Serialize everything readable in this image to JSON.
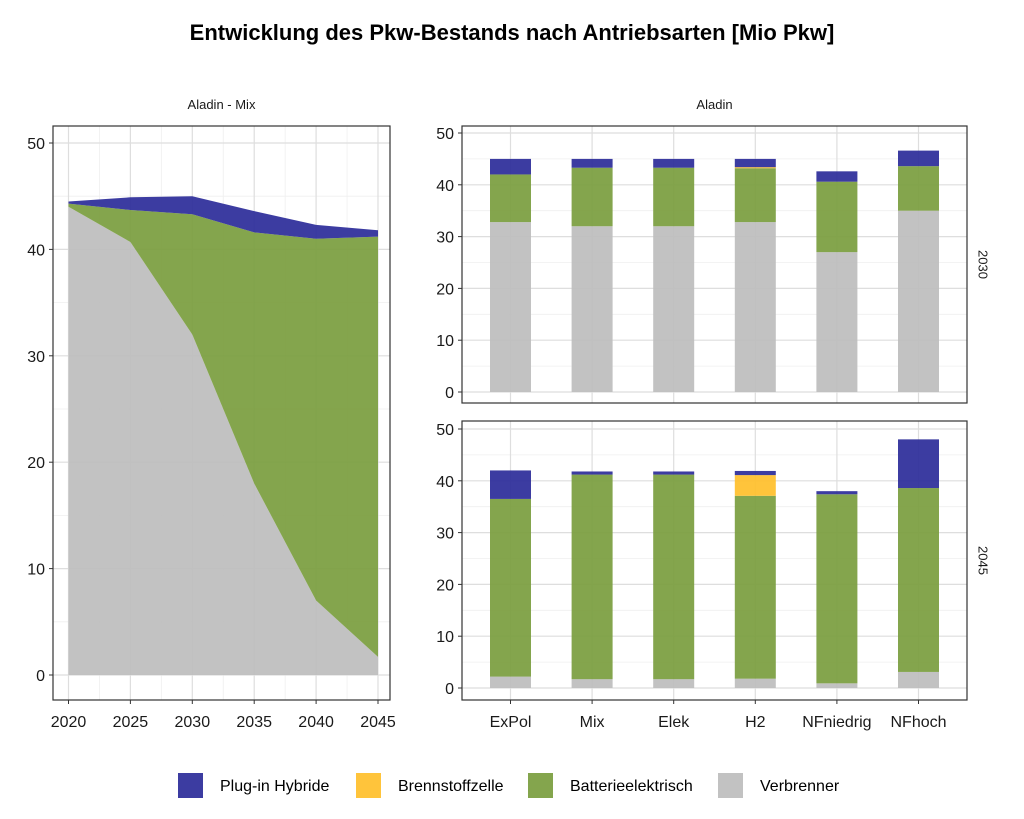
{
  "title": "Entwicklung des Pkw-Bestands nach Antriebsarten [Mio Pkw]",
  "colors": {
    "plugin": "#2b2b99",
    "fuelcell": "#ffbf2a",
    "bev": "#7a9d3e",
    "ice": "#bdbdbd"
  },
  "legend": [
    {
      "key": "plugin",
      "label": "Plug-in Hybride"
    },
    {
      "key": "fuelcell",
      "label": "Brennstoffzelle"
    },
    {
      "key": "bev",
      "label": "Batterieelektrisch"
    },
    {
      "key": "ice",
      "label": "Verbrenner"
    }
  ],
  "chart_data": [
    {
      "type": "area",
      "strip": "Aladin - Mix",
      "x": [
        2020,
        2025,
        2030,
        2035,
        2040,
        2045
      ],
      "x_ticks": [
        "2020",
        "2025",
        "2030",
        "2035",
        "2040",
        "2045"
      ],
      "y_ticks": [
        "0",
        "10",
        "20",
        "30",
        "40",
        "50"
      ],
      "ylim": [
        0,
        50
      ],
      "series": [
        {
          "name": "Verbrenner",
          "key": "ice",
          "values": [
            44.0,
            40.7,
            32.0,
            18.0,
            7.0,
            1.7
          ]
        },
        {
          "name": "Batterieelektrisch",
          "key": "bev",
          "values": [
            0.3,
            3.0,
            11.3,
            23.6,
            34.0,
            39.5
          ]
        },
        {
          "name": "Plug-in Hybride",
          "key": "plugin",
          "values": [
            0.2,
            1.2,
            1.7,
            2.0,
            1.3,
            0.6
          ]
        }
      ]
    },
    {
      "type": "bar",
      "strip": "Aladin",
      "row_label": "2030",
      "categories": [
        "ExPol",
        "Mix",
        "Elek",
        "H2",
        "NFniedrig",
        "NFhoch"
      ],
      "y_ticks": [
        "0",
        "10",
        "20",
        "30",
        "40",
        "50"
      ],
      "ylim": [
        0,
        50
      ],
      "series": [
        {
          "name": "Verbrenner",
          "key": "ice",
          "values": [
            32.8,
            32.0,
            32.0,
            32.8,
            27.0,
            35.0
          ]
        },
        {
          "name": "Batterieelektrisch",
          "key": "bev",
          "values": [
            9.2,
            11.3,
            11.3,
            10.4,
            13.6,
            8.6
          ]
        },
        {
          "name": "Brennstoffzelle",
          "key": "fuelcell",
          "values": [
            0,
            0,
            0,
            0.2,
            0,
            0
          ]
        },
        {
          "name": "Plug-in Hybride",
          "key": "plugin",
          "values": [
            3.0,
            1.7,
            1.7,
            1.6,
            2.0,
            3.0
          ]
        }
      ]
    },
    {
      "type": "bar",
      "row_label": "2045",
      "categories": [
        "ExPol",
        "Mix",
        "Elek",
        "H2",
        "NFniedrig",
        "NFhoch"
      ],
      "y_ticks": [
        "0",
        "10",
        "20",
        "30",
        "40",
        "50"
      ],
      "ylim": [
        0,
        50
      ],
      "series": [
        {
          "name": "Verbrenner",
          "key": "ice",
          "values": [
            2.2,
            1.7,
            1.7,
            1.8,
            0.9,
            3.1
          ]
        },
        {
          "name": "Batterieelektrisch",
          "key": "bev",
          "values": [
            34.3,
            39.5,
            39.5,
            35.3,
            36.5,
            35.5
          ]
        },
        {
          "name": "Brennstoffzelle",
          "key": "fuelcell",
          "values": [
            0,
            0,
            0,
            4.0,
            0,
            0
          ]
        },
        {
          "name": "Plug-in Hybride",
          "key": "plugin",
          "values": [
            5.5,
            0.6,
            0.6,
            0.8,
            0.6,
            9.4
          ]
        }
      ]
    }
  ]
}
